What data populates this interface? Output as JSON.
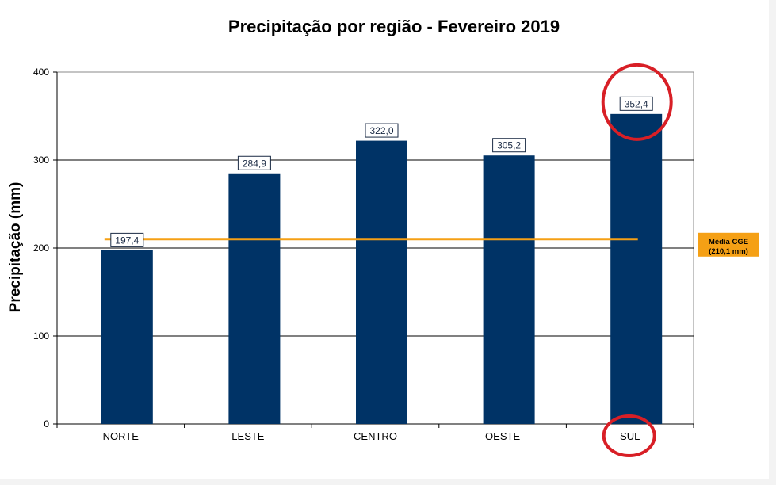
{
  "chart_data": {
    "type": "bar",
    "title": "Precipitação por região - Fevereiro 2019",
    "ylabel": "Precipitação (mm)",
    "xlabel": "",
    "categories": [
      "NORTE",
      "LESTE",
      "CENTRO",
      "OESTE",
      "SUL"
    ],
    "values": [
      197.4,
      284.9,
      322.0,
      305.2,
      352.4
    ],
    "data_labels": [
      "197,4",
      "284,9",
      "322,0",
      "305,2",
      "352,4"
    ],
    "ylim": [
      0,
      400
    ],
    "yticks": [
      0,
      100,
      200,
      300,
      400
    ],
    "grid": true,
    "legend": "none",
    "reference_line": {
      "value": 210.1,
      "label_line1": "Média CGE",
      "label_line2": "(210,1 mm)",
      "color": "#f5a015"
    },
    "highlight_category": "SUL",
    "colors": {
      "bar": "#003366",
      "highlight_circle": "#d81f26",
      "average_line": "#f5a015"
    }
  }
}
